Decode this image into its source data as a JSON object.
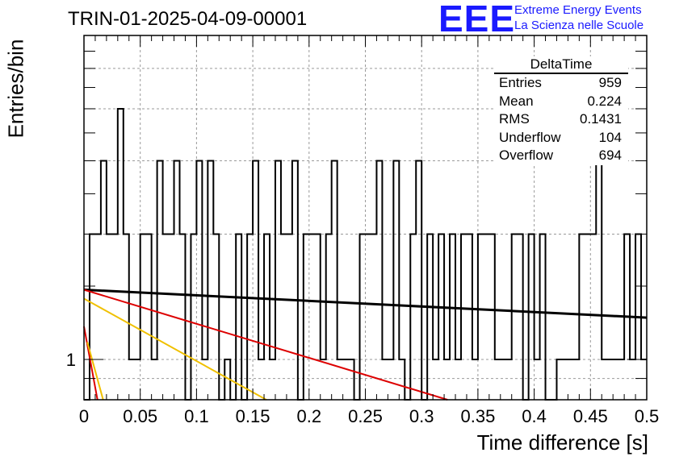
{
  "title": "TRIN-01-2025-04-09-00001",
  "logo": {
    "mark": "EEE",
    "line1": "Extreme Energy Events",
    "line2": "La Scienza nelle Scuole",
    "color": "#1a1aff"
  },
  "stats": {
    "name": "DeltaTime",
    "rows": [
      {
        "label": "Entries",
        "value": "959"
      },
      {
        "label": "Mean",
        "value": "0.224"
      },
      {
        "label": "RMS",
        "value": "0.1431"
      },
      {
        "label": "Underflow",
        "value": "104"
      },
      {
        "label": "Overflow",
        "value": "694"
      }
    ]
  },
  "chart_data": {
    "type": "histogram",
    "xlabel": "Time difference [s]",
    "ylabel": "Entries/bin",
    "xlim": [
      0,
      0.5
    ],
    "ylim": [
      0.8,
      6.0
    ],
    "yscale": "log",
    "grid": true,
    "xticks": [
      "0",
      "0.05",
      "0.1",
      "0.15",
      "0.2",
      "0.25",
      "0.3",
      "0.35",
      "0.4",
      "0.45",
      "0.5"
    ],
    "yticks": [
      "1"
    ],
    "bin_width": 0.005,
    "bin_counts": [
      0,
      2,
      2,
      3,
      2,
      2,
      4,
      2,
      1,
      1,
      2,
      2,
      1,
      3,
      2,
      2,
      3,
      2,
      0,
      2,
      3,
      1,
      3,
      2,
      0,
      1,
      0,
      2,
      0,
      2,
      3,
      1,
      2,
      1,
      3,
      2,
      2,
      3,
      0,
      2,
      2,
      2,
      1,
      2,
      3,
      1,
      1,
      1,
      0,
      2,
      2,
      2,
      3,
      1,
      1,
      3,
      1,
      0,
      2,
      3,
      0,
      2,
      1,
      2,
      1,
      2,
      1,
      2,
      2,
      1,
      2,
      2,
      2,
      1,
      1,
      1,
      2,
      2,
      0,
      2,
      1,
      2,
      0,
      0,
      1,
      1,
      1,
      1,
      2,
      2,
      2,
      3,
      1,
      1,
      1,
      1,
      2,
      1,
      2,
      1
    ],
    "fits": [
      {
        "color": "#000000",
        "points": [
          [
            0,
            1.47
          ],
          [
            0.5,
            1.26
          ]
        ]
      },
      {
        "color": "#dd0000",
        "points": [
          [
            0,
            1.47
          ],
          [
            0.323,
            0.8
          ]
        ]
      },
      {
        "color": "#f0c000",
        "points": [
          [
            0,
            1.4
          ],
          [
            0.162,
            0.8
          ]
        ]
      },
      {
        "color": "#dd0000",
        "points": [
          [
            0,
            1.2
          ],
          [
            0.012,
            0.8
          ]
        ]
      },
      {
        "color": "#f0c000",
        "points": [
          [
            0.003,
            1.1
          ],
          [
            0.017,
            0.8
          ]
        ]
      }
    ]
  }
}
